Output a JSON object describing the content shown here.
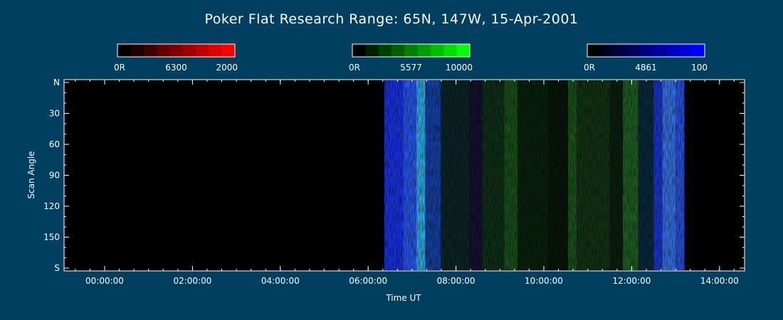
{
  "chart_data": {
    "type": "heatmap",
    "title": "Poker Flat Research Range: 65N, 147W, 15-Apr-2001",
    "xlabel": "Time UT",
    "ylabel": "Scan Angle",
    "xlim_hours": [
      -1.0,
      14.75
    ],
    "ylim_deg": [
      0,
      180
    ],
    "x_ticks": [
      {
        "hours": 0,
        "label": "00:00:00"
      },
      {
        "hours": 2,
        "label": "02:00:00"
      },
      {
        "hours": 4,
        "label": "04:00:00"
      },
      {
        "hours": 6,
        "label": "06:00:00"
      },
      {
        "hours": 8,
        "label": "08:00:00"
      },
      {
        "hours": 10,
        "label": "10:00:00"
      },
      {
        "hours": 12,
        "label": "12:00:00"
      },
      {
        "hours": 14,
        "label": "14:00:00"
      }
    ],
    "y_ticks": [
      {
        "deg": 0,
        "label": "N"
      },
      {
        "deg": 30,
        "label": "30"
      },
      {
        "deg": 60,
        "label": "60"
      },
      {
        "deg": 90,
        "label": "90"
      },
      {
        "deg": 120,
        "label": "120"
      },
      {
        "deg": 150,
        "label": "150"
      },
      {
        "deg": 180,
        "label": "S"
      }
    ],
    "data_start_hours": 6.37,
    "data_end_hours": 13.2,
    "colorbars": [
      {
        "name": "6300",
        "min_label": "0R",
        "max_label": "2000",
        "color": "#ff0000"
      },
      {
        "name": "5577",
        "min_label": "0R",
        "max_label": "10000",
        "color": "#00ff00"
      },
      {
        "name": "4861",
        "min_label": "0R",
        "max_label": "100",
        "color": "#0000ff"
      }
    ],
    "bands": [
      {
        "start": 6.37,
        "end": 6.8,
        "color": "#1a36f0",
        "opacity": 0.95
      },
      {
        "start": 6.8,
        "end": 7.1,
        "color": "#2a5cf8",
        "opacity": 0.95
      },
      {
        "start": 7.1,
        "end": 7.3,
        "color": "#33b8f0",
        "opacity": 0.95
      },
      {
        "start": 7.3,
        "end": 7.65,
        "color": "#1848b8",
        "opacity": 0.9
      },
      {
        "start": 7.65,
        "end": 8.3,
        "color": "#0d2a2a",
        "opacity": 0.9
      },
      {
        "start": 8.3,
        "end": 8.6,
        "color": "#161436",
        "opacity": 0.9
      },
      {
        "start": 8.6,
        "end": 9.1,
        "color": "#10361a",
        "opacity": 0.9
      },
      {
        "start": 9.1,
        "end": 9.4,
        "color": "#1c5a1c",
        "opacity": 0.9
      },
      {
        "start": 9.4,
        "end": 10.1,
        "color": "#0a260e",
        "opacity": 0.9
      },
      {
        "start": 10.1,
        "end": 10.55,
        "color": "#081a0a",
        "opacity": 0.9
      },
      {
        "start": 10.55,
        "end": 10.75,
        "color": "#1d5c1f",
        "opacity": 0.9
      },
      {
        "start": 10.75,
        "end": 11.5,
        "color": "#143a16",
        "opacity": 0.9
      },
      {
        "start": 11.5,
        "end": 11.8,
        "color": "#0b2410",
        "opacity": 0.9
      },
      {
        "start": 11.8,
        "end": 12.15,
        "color": "#226a28",
        "opacity": 0.9
      },
      {
        "start": 12.15,
        "end": 12.5,
        "color": "#0b2e44",
        "opacity": 0.9
      },
      {
        "start": 12.5,
        "end": 12.7,
        "color": "#1a3ad8",
        "opacity": 0.95
      },
      {
        "start": 12.7,
        "end": 13.0,
        "color": "#3a78f2",
        "opacity": 0.95
      },
      {
        "start": 13.0,
        "end": 13.2,
        "color": "#2a56e8",
        "opacity": 0.95
      }
    ]
  }
}
